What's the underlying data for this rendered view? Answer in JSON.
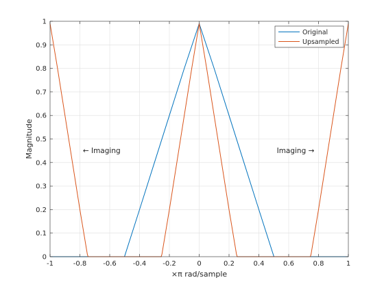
{
  "chart_data": {
    "type": "line",
    "title": "",
    "xlabel": "×π rad/sample",
    "ylabel": "Magnitude",
    "xlim": [
      -1,
      1
    ],
    "ylim": [
      0,
      1
    ],
    "x_ticks": [
      -1,
      -0.8,
      -0.6,
      -0.4,
      -0.2,
      0,
      0.2,
      0.4,
      0.6,
      0.8,
      1
    ],
    "x_tick_labels": [
      "-1",
      "-0.8",
      "-0.6",
      "-0.4",
      "-0.2",
      "0",
      "0.2",
      "0.4",
      "0.6",
      "0.8",
      "1"
    ],
    "y_ticks": [
      0,
      0.1,
      0.2,
      0.3,
      0.4,
      0.5,
      0.6,
      0.7,
      0.8,
      0.9,
      1
    ],
    "y_tick_labels": [
      "0",
      "0.1",
      "0.2",
      "0.3",
      "0.4",
      "0.5",
      "0.6",
      "0.7",
      "0.8",
      "0.9",
      "1"
    ],
    "grid": true,
    "legend_position": "top-right",
    "series": [
      {
        "name": "Original",
        "color": "#0072bd",
        "x": [
          -1,
          -0.5,
          -0.5,
          -0.4,
          -0.3,
          -0.2,
          -0.1,
          0,
          0.1,
          0.2,
          0.3,
          0.4,
          0.5,
          0.5,
          1
        ],
        "y": [
          0,
          0,
          0.002,
          0.2,
          0.4,
          0.6,
          0.8,
          0.99,
          0.8,
          0.6,
          0.4,
          0.2,
          0.002,
          0,
          0
        ]
      },
      {
        "name": "Upsampled",
        "color": "#d95319",
        "x": [
          -1,
          -0.95,
          -0.9,
          -0.85,
          -0.8,
          -0.75,
          -0.745,
          -0.3,
          -0.255,
          -0.25,
          -0.2,
          -0.15,
          -0.1,
          -0.05,
          0,
          0.05,
          0.1,
          0.15,
          0.2,
          0.25,
          0.255,
          0.745,
          0.75,
          0.8,
          0.85,
          0.9,
          0.95,
          1
        ],
        "y": [
          0.99,
          0.8,
          0.6,
          0.4,
          0.2,
          0.01,
          0,
          0,
          0,
          0.01,
          0.2,
          0.4,
          0.6,
          0.8,
          0.99,
          0.8,
          0.6,
          0.4,
          0.2,
          0.01,
          0,
          0,
          0.01,
          0.2,
          0.4,
          0.6,
          0.8,
          0.99
        ]
      }
    ],
    "annotations": [
      {
        "text": "← Imaging",
        "x": -0.78,
        "y": 0.45
      },
      {
        "text": "Imaging →",
        "x": 0.52,
        "y": 0.45
      }
    ]
  }
}
